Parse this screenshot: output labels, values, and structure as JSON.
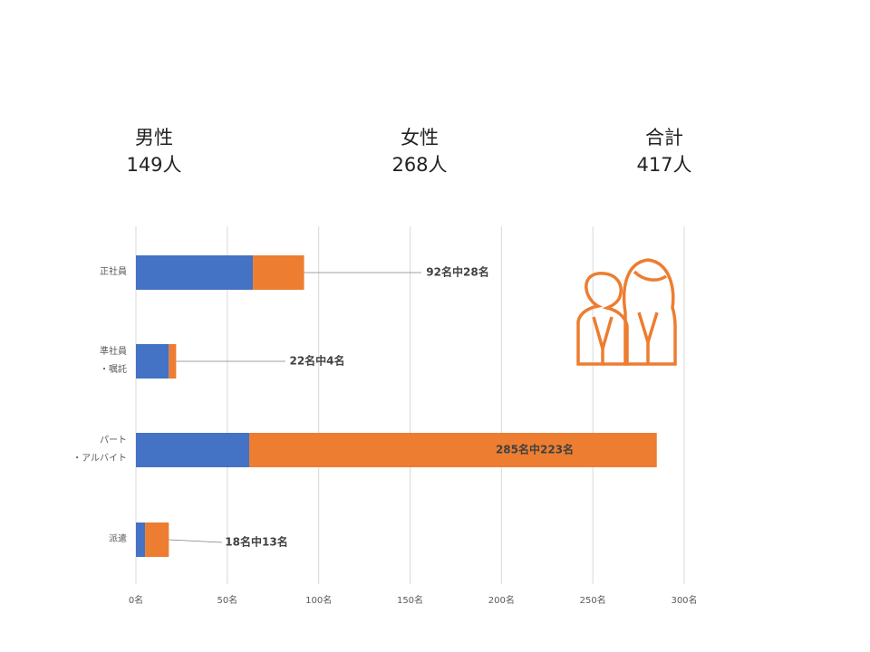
{
  "summary": [
    {
      "label": "男性",
      "value": "149人"
    },
    {
      "label": "女性",
      "value": "268人"
    },
    {
      "label": "合計",
      "value": "417人"
    }
  ],
  "chart_data": {
    "type": "stacked-bar-horizontal",
    "categories": [
      "正社員",
      "準社員\n・嘱託",
      "パート\n・アルバイト",
      "派遣"
    ],
    "series": [
      {
        "name": "男性",
        "color": "#4472c4",
        "values": [
          64,
          18,
          62,
          5
        ]
      },
      {
        "name": "女性",
        "color": "#ed7d31",
        "values": [
          28,
          4,
          223,
          13
        ],
        "value_labels": [
          "92名中28名",
          "22名中4名",
          "285名中223名",
          "18名中13名"
        ]
      }
    ],
    "xlim": [
      0,
      300
    ],
    "xticks": [
      {
        "value": 0,
        "label": "0名"
      },
      {
        "value": 50,
        "label": "50名"
      },
      {
        "value": 100,
        "label": "100名"
      },
      {
        "value": 150,
        "label": "150名"
      },
      {
        "value": 200,
        "label": "200名"
      },
      {
        "value": 250,
        "label": "250名"
      },
      {
        "value": 300,
        "label": "300名"
      }
    ],
    "grid": true
  }
}
